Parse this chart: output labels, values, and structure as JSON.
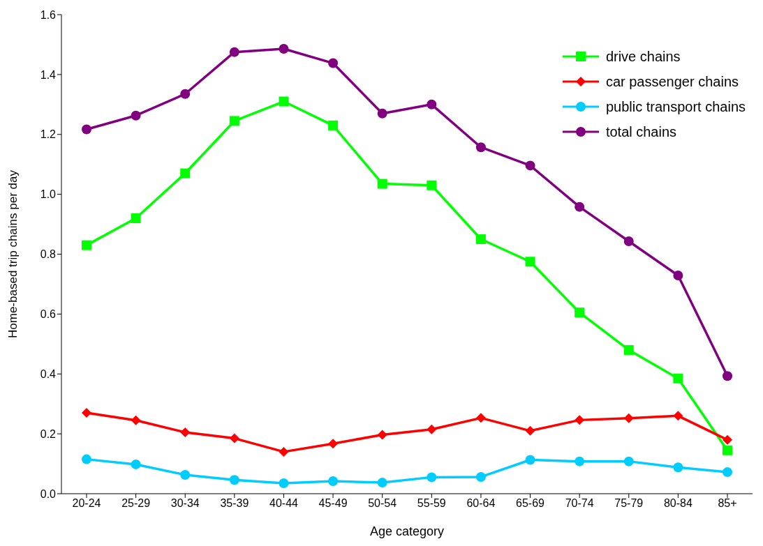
{
  "chart_data": {
    "type": "line",
    "xlabel": "Age category",
    "ylabel": "Home-based trip chains per day",
    "categories": [
      "20-24",
      "25-29",
      "30-34",
      "35-39",
      "40-44",
      "45-49",
      "50-54",
      "55-59",
      "60-64",
      "65-69",
      "70-74",
      "75-79",
      "80-84",
      "85+"
    ],
    "series": [
      {
        "name": "drive chains",
        "color": "#00ff00",
        "marker": "square",
        "values": [
          0.83,
          0.92,
          1.07,
          1.245,
          1.31,
          1.23,
          1.035,
          1.03,
          0.85,
          0.775,
          0.605,
          0.48,
          0.385,
          0.145
        ]
      },
      {
        "name": "car passenger chains",
        "color": "#ff0000",
        "marker": "diamond",
        "values": [
          0.27,
          0.245,
          0.205,
          0.185,
          0.14,
          0.167,
          0.197,
          0.215,
          0.253,
          0.21,
          0.246,
          0.252,
          0.26,
          0.18
        ]
      },
      {
        "name": "public transport chains",
        "color": "#00ccff",
        "marker": "circle",
        "values": [
          0.115,
          0.098,
          0.063,
          0.046,
          0.035,
          0.042,
          0.037,
          0.055,
          0.056,
          0.113,
          0.108,
          0.108,
          0.088,
          0.072
        ]
      },
      {
        "name": "total chains",
        "color": "#800080",
        "marker": "circle",
        "values": [
          1.217,
          1.263,
          1.335,
          1.475,
          1.486,
          1.438,
          1.27,
          1.3,
          1.157,
          1.096,
          0.958,
          0.843,
          0.729,
          0.393
        ]
      }
    ],
    "ylim": [
      0,
      1.6
    ],
    "yticks": [
      {
        "value": 0,
        "label": "0.0"
      },
      {
        "value": 0.2,
        "label": "0.2"
      },
      {
        "value": 0.4,
        "label": "0.4"
      },
      {
        "value": 0.6,
        "label": "0.6"
      },
      {
        "value": 0.8,
        "label": "0.8"
      },
      {
        "value": 1,
        "label": "1.0"
      },
      {
        "value": 1.2,
        "label": "1.2"
      },
      {
        "value": 1.4,
        "label": "1.4"
      },
      {
        "value": 1.6,
        "label": "1.6"
      }
    ],
    "grid": false,
    "legend": "top right",
    "line_style": "solid"
  }
}
